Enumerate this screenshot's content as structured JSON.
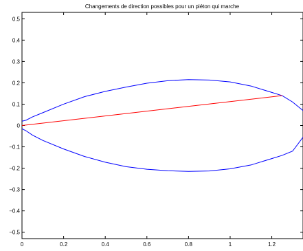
{
  "chart_data": {
    "type": "line",
    "title": "Changements de direction possibles pour un piéton qui marche",
    "xlabel": "",
    "ylabel": "",
    "xlim": [
      0,
      1.35
    ],
    "ylim": [
      -0.53,
      0.53
    ],
    "grid": false,
    "xticks": [
      0,
      0.2,
      0.4,
      0.6,
      0.8,
      1,
      1.2
    ],
    "xtick_labels": [
      "0",
      "0.2",
      "0.4",
      "0.6",
      "0.8",
      "1",
      "1.2"
    ],
    "yticks": [
      -0.5,
      -0.4,
      -0.3,
      -0.2,
      -0.1,
      0,
      0.1,
      0.2,
      0.3,
      0.4,
      0.5
    ],
    "ytick_labels": [
      "−0.5",
      "−0.4",
      "−0.3",
      "−0.2",
      "−0.1",
      "0",
      "0.1",
      "0.2",
      "0.3",
      "0.4",
      "0.5"
    ],
    "series": [
      {
        "color": "#0000ff",
        "x": [
          0,
          0.02,
          0.05,
          0.1,
          0.2,
          0.3,
          0.4,
          0.5,
          0.6,
          0.7,
          0.8,
          0.9,
          1.0,
          1.1,
          1.2,
          1.25,
          1.3,
          1.35
        ],
        "y": [
          0.02,
          0.025,
          0.04,
          0.06,
          0.1,
          0.135,
          0.16,
          0.18,
          0.198,
          0.21,
          0.215,
          0.213,
          0.204,
          0.185,
          0.155,
          0.14,
          0.11,
          0.07
        ]
      },
      {
        "color": "#0000ff",
        "x": [
          0,
          0.02,
          0.05,
          0.1,
          0.2,
          0.3,
          0.4,
          0.5,
          0.6,
          0.7,
          0.8,
          0.9,
          1.0,
          1.1,
          1.2,
          1.25,
          1.3,
          1.35
        ],
        "y": [
          -0.015,
          -0.025,
          -0.045,
          -0.07,
          -0.11,
          -0.145,
          -0.172,
          -0.193,
          -0.205,
          -0.212,
          -0.215,
          -0.213,
          -0.203,
          -0.185,
          -0.155,
          -0.14,
          -0.12,
          -0.055
        ]
      },
      {
        "color": "#ff0000",
        "x": [
          0,
          1.25
        ],
        "y": [
          0,
          0.14
        ]
      }
    ]
  }
}
